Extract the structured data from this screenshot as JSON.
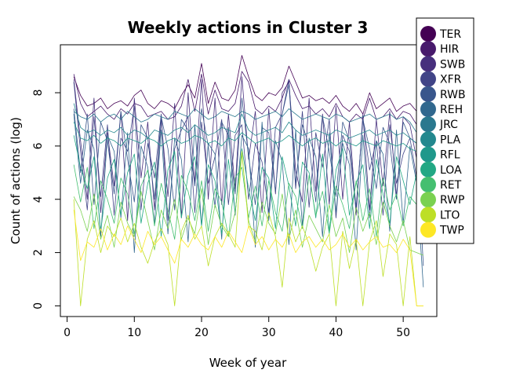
{
  "chart_data": {
    "type": "line",
    "title": "Weekly actions in Cluster 3",
    "xlabel": "Week of year",
    "ylabel": "Count of actions (log)",
    "xlim": [
      -1,
      55
    ],
    "ylim": [
      -0.4,
      9.8
    ],
    "xticks": [
      0,
      10,
      20,
      30,
      40,
      50
    ],
    "yticks": [
      0,
      2,
      4,
      6,
      8
    ],
    "grid": false,
    "legend_position": "top-right",
    "series": [
      {
        "name": "TER",
        "color": "#440154",
        "base": 7.8,
        "amp": 0.35,
        "seed": 3,
        "values": [
          8.6,
          7.9,
          7.5,
          7.6,
          7.8,
          7.4,
          7.6,
          7.7,
          7.5,
          7.9,
          8.1,
          7.6,
          7.4,
          7.7,
          7.6,
          7.4,
          7.9,
          8.3,
          7.8,
          9.1,
          7.6,
          8.4,
          7.8,
          7.7,
          8.1,
          9.4,
          8.6,
          7.9,
          7.7,
          8.0,
          7.9,
          8.2,
          9.0,
          8.4,
          7.8,
          7.9,
          7.7,
          7.8,
          7.6,
          7.9,
          7.5,
          7.3,
          7.6,
          7.2,
          8.0,
          7.4,
          7.6,
          7.8,
          7.3,
          7.5,
          7.6,
          7.3,
          6.2
        ]
      },
      {
        "name": "HIR",
        "color": "#481a6c",
        "values": [
          8.7,
          7.6,
          7.1,
          7.3,
          7.5,
          7.2,
          7.0,
          7.4,
          7.2,
          7.6,
          7.5,
          7.1,
          7.2,
          7.3,
          7.0,
          7.1,
          7.5,
          8.5,
          7.3,
          8.7,
          7.2,
          8.1,
          7.4,
          7.3,
          7.6,
          8.8,
          8.4,
          7.4,
          7.2,
          7.5,
          7.3,
          7.8,
          8.5,
          7.9,
          7.4,
          7.5,
          7.2,
          7.4,
          7.1,
          7.6,
          7.1,
          6.9,
          7.2,
          7.0,
          7.8,
          7.0,
          7.1,
          7.4,
          7.0,
          7.3,
          7.2,
          6.8,
          2.6
        ]
      },
      {
        "name": "SWB",
        "color": "#472f7d",
        "values": [
          8.5,
          6.2,
          4.0,
          7.8,
          3.5,
          6.5,
          4.5,
          7.3,
          3.2,
          7.8,
          4.8,
          6.9,
          3.6,
          7.0,
          4.1,
          7.6,
          3.3,
          8.0,
          4.6,
          8.5,
          4.0,
          7.8,
          3.8,
          7.2,
          4.4,
          8.6,
          5.5,
          7.3,
          3.5,
          7.4,
          4.2,
          8.0,
          8.4,
          5.1,
          3.9,
          7.8,
          4.3,
          7.2,
          3.8,
          7.5,
          4.0,
          6.9,
          3.4,
          7.2,
          3.6,
          7.0,
          4.5,
          7.3,
          4.1,
          7.1,
          6.8,
          5.5,
          3.0
        ]
      },
      {
        "name": "XFR",
        "color": "#414487",
        "values": [
          8.4,
          5.8,
          3.6,
          7.1,
          4.1,
          6.8,
          3.4,
          6.3,
          5.8,
          7.5,
          3.6,
          6.1,
          4.8,
          7.2,
          3.2,
          5.9,
          6.6,
          7.1,
          3.5,
          6.9,
          4.6,
          5.6,
          7.0,
          3.8,
          6.4,
          6.8,
          4.0,
          6.1,
          5.4,
          3.5,
          6.7,
          7.2,
          8.5,
          4.4,
          7.3,
          3.7,
          6.5,
          5.2,
          7.0,
          3.3,
          6.4,
          5.8,
          3.6,
          7.0,
          5.1,
          6.2,
          3.4,
          6.8,
          4.6,
          5.7,
          6.3,
          4.8,
          2.5
        ]
      },
      {
        "name": "RWB",
        "color": "#39568c",
        "values": [
          7.4,
          5.0,
          7.2,
          3.8,
          6.9,
          6.2,
          4.2,
          7.3,
          5.5,
          3.9,
          6.8,
          6.3,
          4.0,
          7.1,
          5.9,
          3.6,
          7.0,
          6.6,
          4.5,
          7.4,
          6.0,
          3.7,
          6.9,
          6.4,
          4.2,
          7.8,
          5.6,
          3.8,
          6.7,
          6.5,
          4.3,
          7.2,
          8.3,
          4.6,
          6.8,
          6.0,
          3.9,
          7.1,
          5.8,
          4.1,
          6.9,
          6.2,
          3.7,
          7.0,
          5.9,
          4.4,
          6.7,
          6.1,
          4.0,
          6.9,
          6.3,
          6.1,
          1.5
        ]
      },
      {
        "name": "REH",
        "color": "#31688e",
        "values": [
          7.2,
          4.6,
          6.6,
          5.9,
          2.6,
          6.4,
          5.8,
          3.3,
          6.5,
          2.0,
          6.0,
          5.2,
          3.1,
          6.6,
          2.7,
          6.3,
          5.5,
          2.4,
          6.8,
          3.0,
          6.1,
          5.7,
          2.5,
          6.7,
          3.4,
          6.4,
          5.9,
          2.2,
          6.9,
          3.2,
          6.2,
          5.4,
          2.3,
          6.6,
          3.0,
          6.3,
          5.6,
          2.6,
          6.5,
          3.5,
          6.1,
          5.3,
          2.1,
          6.4,
          3.3,
          6.2,
          5.7,
          2.8,
          6.6,
          3.1,
          6.0,
          4.6,
          0.7
        ]
      },
      {
        "name": "JRC",
        "color": "#2a788e",
        "values": [
          7.3,
          7.1,
          7.0,
          7.2,
          6.9,
          7.1,
          7.2,
          7.0,
          7.3,
          7.1,
          6.9,
          7.0,
          7.2,
          7.1,
          7.0,
          7.3,
          7.2,
          7.1,
          7.4,
          7.2,
          7.0,
          7.1,
          7.3,
          7.2,
          7.1,
          7.3,
          7.2,
          7.0,
          7.1,
          7.2,
          7.3,
          7.1,
          7.4,
          7.2,
          7.0,
          7.1,
          7.2,
          7.1,
          7.0,
          7.2,
          7.1,
          6.9,
          7.0,
          7.1,
          7.2,
          7.0,
          7.1,
          7.2,
          7.0,
          7.1,
          6.9,
          6.5,
          5.8
        ]
      },
      {
        "name": "PLA",
        "color": "#23888e",
        "values": [
          7.6,
          6.7,
          6.5,
          6.6,
          6.4,
          6.6,
          6.5,
          6.7,
          6.4,
          6.6,
          6.5,
          6.3,
          6.6,
          6.5,
          6.4,
          6.6,
          6.7,
          6.5,
          6.8,
          6.6,
          6.4,
          6.5,
          6.7,
          6.6,
          6.5,
          7.2,
          6.6,
          6.4,
          6.5,
          6.6,
          6.7,
          6.5,
          6.9,
          6.6,
          6.4,
          6.5,
          6.6,
          6.5,
          6.4,
          6.6,
          6.5,
          6.3,
          6.4,
          6.5,
          6.6,
          6.4,
          6.5,
          6.6,
          6.4,
          6.5,
          6.3,
          6.1,
          5.9
        ]
      },
      {
        "name": "RFL",
        "color": "#1f988b",
        "values": [
          6.9,
          6.3,
          6.2,
          6.4,
          6.1,
          6.3,
          6.2,
          6.0,
          6.3,
          6.2,
          6.1,
          6.3,
          6.2,
          6.0,
          6.2,
          6.3,
          6.1,
          6.2,
          6.4,
          6.3,
          6.1,
          6.2,
          6.0,
          6.3,
          6.2,
          6.5,
          6.3,
          6.1,
          6.2,
          6.3,
          6.1,
          6.2,
          6.4,
          6.2,
          6.0,
          6.2,
          6.3,
          6.1,
          6.2,
          6.0,
          6.2,
          6.1,
          6.0,
          6.2,
          6.1,
          6.0,
          6.2,
          6.1,
          6.0,
          6.1,
          5.9,
          5.8,
          5.6
        ]
      },
      {
        "name": "LOA",
        "color": "#22a884",
        "values": [
          6.4,
          5.2,
          4.4,
          5.6,
          2.8,
          4.8,
          5.5,
          3.4,
          5.0,
          5.7,
          3.1,
          4.6,
          5.4,
          2.6,
          5.1,
          5.8,
          3.3,
          4.9,
          5.6,
          3.0,
          5.3,
          4.7,
          2.7,
          5.5,
          3.5,
          5.9,
          4.4,
          3.2,
          5.2,
          4.8,
          2.9,
          5.6,
          4.5,
          3.0,
          5.4,
          5.0,
          3.3,
          5.7,
          2.8,
          5.1,
          5.9,
          3.4,
          4.6,
          5.3,
          2.9,
          5.5,
          4.2,
          3.1,
          5.6,
          4.7,
          3.8,
          5.0,
          3.8
        ]
      },
      {
        "name": "RET",
        "color": "#44bf70",
        "values": [
          5.3,
          3.9,
          5.2,
          2.9,
          4.7,
          4.0,
          3.1,
          4.8,
          4.2,
          2.7,
          4.5,
          5.1,
          3.0,
          4.6,
          3.6,
          2.5,
          4.9,
          4.3,
          3.2,
          4.7,
          2.8,
          4.4,
          3.9,
          2.6,
          4.8,
          5.2,
          3.3,
          4.5,
          3.0,
          4.7,
          3.5,
          2.8,
          4.6,
          4.1,
          2.9,
          4.9,
          3.4,
          4.3,
          2.7,
          4.5,
          3.8,
          2.9,
          4.7,
          3.2,
          4.4,
          2.6,
          4.8,
          3.6,
          4.2,
          3.0,
          4.1,
          3.8,
          3.2
        ]
      },
      {
        "name": "RWP",
        "color": "#7ad151",
        "values": [
          4.1,
          3.6,
          2.8,
          4.2,
          2.5,
          3.4,
          2.2,
          3.9,
          3.1,
          2.6,
          4.3,
          3.2,
          2.1,
          3.6,
          2.9,
          4.0,
          2.5,
          3.3,
          2.7,
          4.4,
          2.3,
          3.8,
          3.0,
          2.6,
          3.5,
          5.7,
          3.2,
          2.4,
          3.9,
          3.1,
          2.7,
          4.2,
          2.5,
          3.6,
          2.2,
          3.4,
          2.9,
          2.4,
          3.8,
          2.6,
          3.3,
          2.0,
          3.7,
          2.8,
          3.5,
          2.3,
          3.9,
          3.0,
          2.4,
          3.2,
          2.1,
          2.0,
          1.9
        ]
      },
      {
        "name": "LTO",
        "color": "#bddf26",
        "values": [
          4.0,
          0.0,
          2.5,
          3.2,
          2.0,
          3.0,
          2.6,
          3.3,
          2.4,
          3.1,
          2.2,
          1.6,
          2.4,
          2.9,
          2.3,
          0.0,
          2.8,
          3.4,
          2.5,
          3.0,
          1.5,
          2.6,
          3.1,
          2.7,
          2.2,
          5.8,
          3.0,
          2.8,
          2.1,
          3.5,
          2.6,
          0.7,
          3.3,
          2.4,
          3.0,
          2.3,
          1.3,
          2.2,
          2.7,
          0.0,
          2.8,
          1.4,
          2.5,
          0.0,
          2.4,
          3.2,
          1.1,
          2.7,
          2.3,
          0.0,
          2.6,
          0.0,
          0.0
        ]
      },
      {
        "name": "TWP",
        "color": "#fde725",
        "values": [
          3.6,
          1.7,
          2.4,
          2.2,
          2.9,
          2.1,
          2.7,
          2.3,
          3.0,
          2.5,
          2.0,
          2.8,
          2.3,
          2.6,
          2.1,
          1.6,
          2.5,
          2.2,
          2.7,
          2.3,
          2.1,
          2.6,
          2.2,
          2.8,
          2.4,
          2.0,
          3.0,
          2.3,
          2.6,
          2.1,
          2.5,
          2.2,
          2.7,
          2.0,
          2.4,
          2.6,
          2.2,
          2.5,
          2.1,
          2.3,
          2.7,
          2.2,
          2.5,
          2.1,
          2.4,
          2.6,
          2.2,
          2.3,
          2.0,
          2.5,
          2.1,
          0.0,
          0.0
        ]
      }
    ]
  }
}
